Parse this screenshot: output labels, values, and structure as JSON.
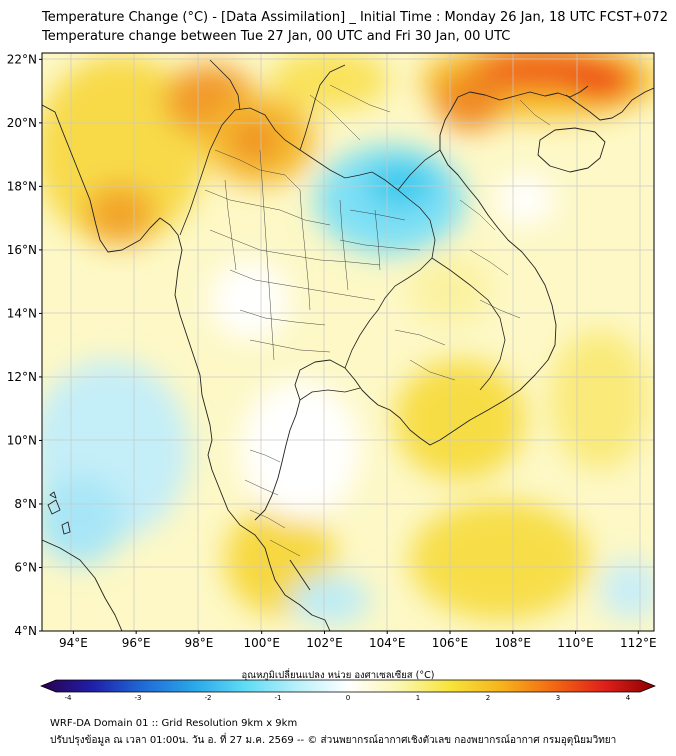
{
  "header": {
    "title_line1": "Temperature Change (°C) - [Data Assimilation] _ Initial Time : Monday 26 Jan, 18 UTC FCST+072",
    "title_line2": "Temperature change between Tue 27 Jan, 00 UTC and Fri 30 Jan, 00 UTC"
  },
  "map": {
    "lat_labels": [
      "22°N",
      "20°N",
      "18°N",
      "16°N",
      "14°N",
      "12°N",
      "10°N",
      "8°N",
      "6°N",
      "4°N"
    ],
    "lon_labels": [
      "94°E",
      "96°E",
      "98°E",
      "100°E",
      "102°E",
      "104°E",
      "106°E",
      "108°E",
      "110°E",
      "112°E"
    ],
    "lat_range": [
      4,
      22.2
    ],
    "lon_range": [
      93.0,
      112.5
    ]
  },
  "colorbar": {
    "label": "อุณหภูมิเปลี่ยนแปลง หน่วย องศาเซลเซียส (°C)",
    "ticks": [
      "-4",
      "-3",
      "-2",
      "-1",
      "0",
      "1",
      "2",
      "3",
      "4"
    ],
    "range": [
      -4,
      4
    ],
    "colors": [
      "#2a004e",
      "#1f1fa8",
      "#1f6bd6",
      "#2aa8ea",
      "#5fdcf5",
      "#b8f0fa",
      "#ffffff",
      "#fbf6b0",
      "#f7e43a",
      "#f6b31c",
      "#f26a12",
      "#e0201a",
      "#8a0000"
    ]
  },
  "footer": {
    "line1": "WRF-DA Domain 01 :: Grid Resolution 9km x 9km",
    "line2": "ปรับปรุงข้อมูล ณ เวลา 01:00น. วัน อ. ที่ 27 ม.ค. 2569 -- © ส่วนพยากรณ์อากาศเชิงตัวเลข กองพยากรณ์อากาศ กรมอุตุนิยมวิทยา"
  }
}
